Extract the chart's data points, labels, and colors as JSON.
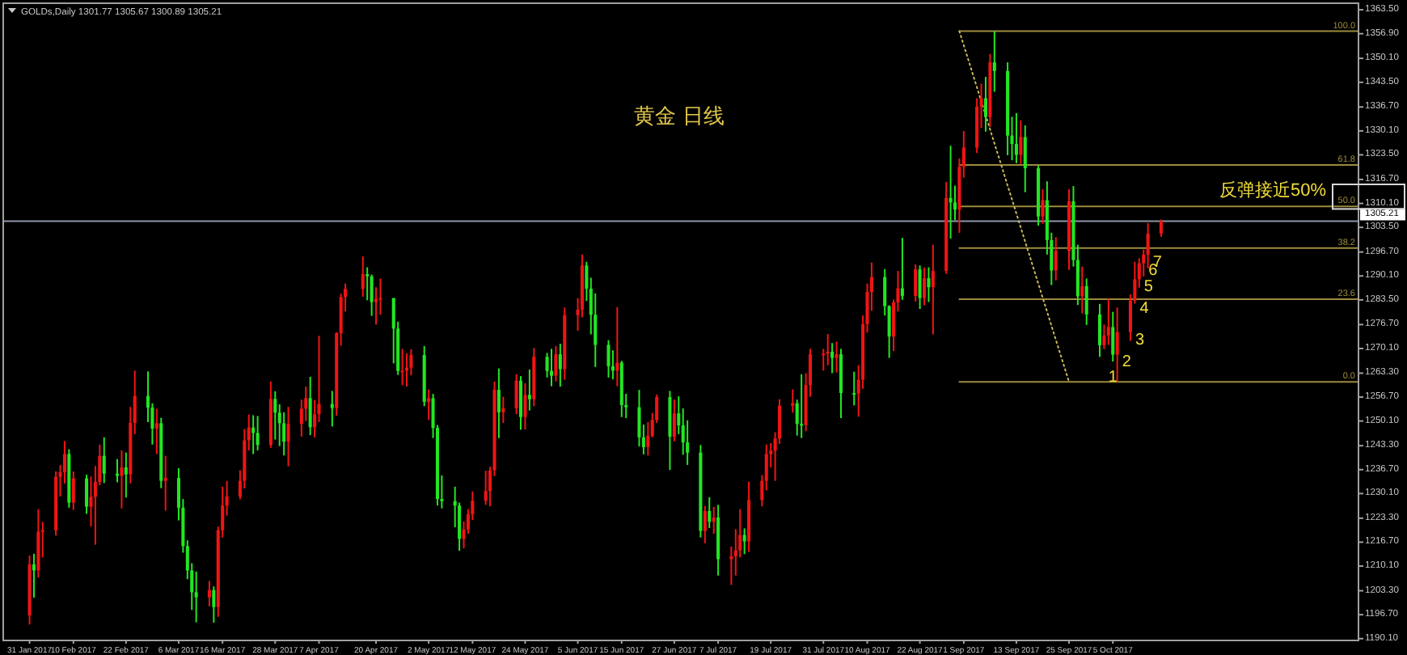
{
  "chart_data": {
    "type": "candlestick",
    "title": "黄金 日线",
    "xlim": [
      "2017-01-25",
      "2017-11-30"
    ],
    "ylim": [
      1189.6,
      1365.3
    ],
    "xticks": [
      {
        "value": "2017-01-31",
        "label": "31 Jan 2017"
      },
      {
        "value": "2017-02-10",
        "label": "10 Feb 2017"
      },
      {
        "value": "2017-02-22",
        "label": "22 Feb 2017"
      },
      {
        "value": "2017-03-06",
        "label": "6 Mar 2017"
      },
      {
        "value": "2017-03-16",
        "label": "16 Mar 2017"
      },
      {
        "value": "2017-03-28",
        "label": "28 Mar 2017"
      },
      {
        "value": "2017-04-07",
        "label": "7 Apr 2017"
      },
      {
        "value": "2017-04-20",
        "label": "20 Apr 2017"
      },
      {
        "value": "2017-05-02",
        "label": "2 May 2017"
      },
      {
        "value": "2017-05-12",
        "label": "12 May 2017"
      },
      {
        "value": "2017-05-24",
        "label": "24 May 2017"
      },
      {
        "value": "2017-06-05",
        "label": "5 Jun 2017"
      },
      {
        "value": "2017-06-15",
        "label": "15 Jun 2017"
      },
      {
        "value": "2017-06-27",
        "label": "27 Jun 2017"
      },
      {
        "value": "2017-07-07",
        "label": "7 Jul 2017"
      },
      {
        "value": "2017-07-19",
        "label": "19 Jul 2017"
      },
      {
        "value": "2017-07-31",
        "label": "31 Jul 2017"
      },
      {
        "value": "2017-08-10",
        "label": "10 Aug 2017"
      },
      {
        "value": "2017-08-22",
        "label": "22 Aug 2017"
      },
      {
        "value": "2017-09-01",
        "label": "1 Sep 2017"
      },
      {
        "value": "2017-09-13",
        "label": "13 Sep 2017"
      },
      {
        "value": "2017-09-25",
        "label": "25 Sep 2017"
      },
      {
        "value": "2017-10-05",
        "label": "5 Oct 2017"
      }
    ],
    "yticks": [
      {
        "value": 1363.5,
        "label": "1363.50"
      },
      {
        "value": 1356.9,
        "label": "1356.90"
      },
      {
        "value": 1350.1,
        "label": "1350.10"
      },
      {
        "value": 1343.5,
        "label": "1343.50"
      },
      {
        "value": 1336.7,
        "label": "1336.70"
      },
      {
        "value": 1330.1,
        "label": "1330.10"
      },
      {
        "value": 1323.5,
        "label": "1323.50"
      },
      {
        "value": 1316.7,
        "label": "1316.70"
      },
      {
        "value": 1310.1,
        "label": "1310.10"
      },
      {
        "value": 1303.5,
        "label": "1303.50"
      },
      {
        "value": 1296.7,
        "label": "1296.70"
      },
      {
        "value": 1290.1,
        "label": "1290.10"
      },
      {
        "value": 1283.5,
        "label": "1283.50"
      },
      {
        "value": 1276.7,
        "label": "1276.70"
      },
      {
        "value": 1270.1,
        "label": "1270.10"
      },
      {
        "value": 1263.3,
        "label": "1263.30"
      },
      {
        "value": 1256.7,
        "label": "1256.70"
      },
      {
        "value": 1250.1,
        "label": "1250.10"
      },
      {
        "value": 1243.3,
        "label": "1243.30"
      },
      {
        "value": 1236.7,
        "label": "1236.70"
      },
      {
        "value": 1230.1,
        "label": "1230.10"
      },
      {
        "value": 1223.3,
        "label": "1223.30"
      },
      {
        "value": 1216.7,
        "label": "1216.70"
      },
      {
        "value": 1210.1,
        "label": "1210.10"
      },
      {
        "value": 1203.3,
        "label": "1203.30"
      },
      {
        "value": 1196.7,
        "label": "1196.70"
      },
      {
        "value": 1190.1,
        "label": "1190.10"
      }
    ],
    "ref_lines": [
      {
        "axis": "y",
        "value": 1305.21,
        "label": "1305.21",
        "color": "#8c96a8"
      }
    ],
    "series": [
      {
        "type": "line",
        "name": "100.0",
        "color": "#9c8a3c",
        "x": [
          "2017-08-31",
          "2017-11-30"
        ],
        "values": [
          1357.6,
          1357.6
        ]
      },
      {
        "type": "line",
        "name": "61.8",
        "color": "#9c8a3c",
        "x": [
          "2017-08-31",
          "2017-11-30"
        ],
        "values": [
          1320.7,
          1320.7
        ]
      },
      {
        "type": "line",
        "name": "50.0",
        "color": "#9c8a3c",
        "x": [
          "2017-08-31",
          "2017-11-30"
        ],
        "values": [
          1309.3,
          1309.3
        ]
      },
      {
        "type": "line",
        "name": "38.2",
        "color": "#9c8a3c",
        "x": [
          "2017-08-31",
          "2017-11-30"
        ],
        "values": [
          1297.8,
          1297.8
        ]
      },
      {
        "type": "line",
        "name": "23.6",
        "color": "#9c8a3c",
        "x": [
          "2017-08-31",
          "2017-11-30"
        ],
        "values": [
          1283.7,
          1283.7
        ]
      },
      {
        "type": "line",
        "name": "0.0",
        "color": "#9c8a3c",
        "x": [
          "2017-08-31",
          "2017-11-30"
        ],
        "values": [
          1260.9,
          1260.9
        ]
      },
      {
        "type": "line",
        "color": "#c8b85a",
        "line_style": "dotted",
        "x": [
          "2017-08-31",
          "2017-09-25"
        ],
        "values": [
          1357.6,
          1260.9
        ]
      },
      {
        "type": "candlestick",
        "x": [
          "2017-01-31",
          "2017-02-01",
          "2017-02-02",
          "2017-02-03",
          "2017-02-06",
          "2017-02-07",
          "2017-02-08",
          "2017-02-09",
          "2017-02-10",
          "2017-02-13",
          "2017-02-14",
          "2017-02-15",
          "2017-02-16",
          "2017-02-17",
          "2017-02-20",
          "2017-02-21",
          "2017-02-22",
          "2017-02-23",
          "2017-02-24",
          "2017-02-27",
          "2017-02-28",
          "2017-03-01",
          "2017-03-02",
          "2017-03-03",
          "2017-03-06",
          "2017-03-07",
          "2017-03-08",
          "2017-03-09",
          "2017-03-10",
          "2017-03-13",
          "2017-03-14",
          "2017-03-15",
          "2017-03-16",
          "2017-03-17",
          "2017-03-20",
          "2017-03-21",
          "2017-03-22",
          "2017-03-23",
          "2017-03-24",
          "2017-03-27",
          "2017-03-28",
          "2017-03-29",
          "2017-03-30",
          "2017-03-31",
          "2017-04-03",
          "2017-04-04",
          "2017-04-05",
          "2017-04-06",
          "2017-04-07",
          "2017-04-10",
          "2017-04-11",
          "2017-04-12",
          "2017-04-13",
          "2017-04-17",
          "2017-04-18",
          "2017-04-19",
          "2017-04-20",
          "2017-04-21",
          "2017-04-24",
          "2017-04-25",
          "2017-04-26",
          "2017-04-27",
          "2017-04-28",
          "2017-05-01",
          "2017-05-02",
          "2017-05-03",
          "2017-05-04",
          "2017-05-05",
          "2017-05-08",
          "2017-05-09",
          "2017-05-10",
          "2017-05-11",
          "2017-05-12",
          "2017-05-15",
          "2017-05-16",
          "2017-05-17",
          "2017-05-18",
          "2017-05-19",
          "2017-05-22",
          "2017-05-23",
          "2017-05-24",
          "2017-05-25",
          "2017-05-26",
          "2017-05-29",
          "2017-05-30",
          "2017-05-31",
          "2017-06-01",
          "2017-06-02",
          "2017-06-05",
          "2017-06-06",
          "2017-06-07",
          "2017-06-08",
          "2017-06-09",
          "2017-06-12",
          "2017-06-13",
          "2017-06-14",
          "2017-06-15",
          "2017-06-16",
          "2017-06-19",
          "2017-06-20",
          "2017-06-21",
          "2017-06-22",
          "2017-06-23",
          "2017-06-26",
          "2017-06-27",
          "2017-06-28",
          "2017-06-29",
          "2017-06-30",
          "2017-07-03",
          "2017-07-04",
          "2017-07-05",
          "2017-07-06",
          "2017-07-07",
          "2017-07-10",
          "2017-07-11",
          "2017-07-12",
          "2017-07-13",
          "2017-07-14",
          "2017-07-17",
          "2017-07-18",
          "2017-07-19",
          "2017-07-20",
          "2017-07-21",
          "2017-07-24",
          "2017-07-25",
          "2017-07-26",
          "2017-07-27",
          "2017-07-28",
          "2017-07-31",
          "2017-08-01",
          "2017-08-02",
          "2017-08-03",
          "2017-08-04",
          "2017-08-07",
          "2017-08-08",
          "2017-08-09",
          "2017-08-10",
          "2017-08-11",
          "2017-08-14",
          "2017-08-15",
          "2017-08-16",
          "2017-08-17",
          "2017-08-18",
          "2017-08-21",
          "2017-08-22",
          "2017-08-23",
          "2017-08-24",
          "2017-08-25",
          "2017-08-28",
          "2017-08-29",
          "2017-08-30",
          "2017-08-31",
          "2017-09-01",
          "2017-09-04",
          "2017-09-05",
          "2017-09-06",
          "2017-09-07",
          "2017-09-08",
          "2017-09-11",
          "2017-09-12",
          "2017-09-13",
          "2017-09-14",
          "2017-09-15",
          "2017-09-18",
          "2017-09-19",
          "2017-09-20",
          "2017-09-21",
          "2017-09-22",
          "2017-09-25",
          "2017-09-26",
          "2017-09-27",
          "2017-09-28",
          "2017-09-29",
          "2017-10-02",
          "2017-10-03",
          "2017-10-04",
          "2017-10-05",
          "2017-10-06",
          "2017-10-09",
          "2017-10-10",
          "2017-10-11",
          "2017-10-12",
          "2017-10-13",
          "2017-10-16"
        ],
        "ohlc": [
          [
            1196.5,
            1213.0,
            1194.0,
            1210.6
          ],
          [
            1210.6,
            1213.5,
            1201.4,
            1208.9
          ],
          [
            1208.9,
            1225.8,
            1207.0,
            1219.6
          ],
          [
            1219.6,
            1222.3,
            1212.5,
            1220.0
          ],
          [
            1220.0,
            1236.2,
            1218.5,
            1234.7
          ],
          [
            1234.7,
            1238.0,
            1229.3,
            1236.0
          ],
          [
            1236.0,
            1244.6,
            1232.9,
            1241.0
          ],
          [
            1241.0,
            1242.3,
            1226.2,
            1227.6
          ],
          [
            1227.6,
            1236.2,
            1225.6,
            1234.3
          ],
          [
            1234.3,
            1235.3,
            1224.5,
            1226.5
          ],
          [
            1226.5,
            1234.8,
            1221.0,
            1229.2
          ],
          [
            1229.2,
            1237.7,
            1216.0,
            1233.3
          ],
          [
            1233.3,
            1243.6,
            1232.4,
            1240.5
          ],
          [
            1240.5,
            1245.6,
            1233.0,
            1235.6
          ],
          [
            1235.6,
            1239.6,
            1233.2,
            1235.0
          ],
          [
            1235.0,
            1242.0,
            1226.0,
            1237.3
          ],
          [
            1237.3,
            1241.4,
            1229.0,
            1235.4
          ],
          [
            1235.4,
            1254.0,
            1232.9,
            1249.6
          ],
          [
            1249.6,
            1264.0,
            1246.5,
            1257.0
          ],
          [
            1257.0,
            1263.8,
            1249.8,
            1253.8
          ],
          [
            1253.8,
            1255.0,
            1243.6,
            1248.0
          ],
          [
            1248.0,
            1253.5,
            1241.0,
            1249.5
          ],
          [
            1249.5,
            1251.0,
            1231.6,
            1233.6
          ],
          [
            1233.6,
            1240.5,
            1225.4,
            1234.4
          ],
          [
            1234.4,
            1237.1,
            1222.7,
            1226.2
          ],
          [
            1226.2,
            1228.6,
            1213.8,
            1215.6
          ],
          [
            1215.6,
            1217.2,
            1206.5,
            1208.9
          ],
          [
            1208.9,
            1210.9,
            1198.0,
            1202.9
          ],
          [
            1202.9,
            1208.6,
            1194.6,
            1201.5
          ],
          [
            1201.5,
            1206.0,
            1199.0,
            1203.5
          ],
          [
            1203.5,
            1204.5,
            1194.5,
            1198.8
          ],
          [
            1198.8,
            1221.0,
            1196.1,
            1220.0
          ],
          [
            1220.0,
            1232.0,
            1218.0,
            1226.8
          ],
          [
            1226.8,
            1233.6,
            1224.0,
            1229.3
          ],
          [
            1229.3,
            1236.5,
            1228.5,
            1233.6
          ],
          [
            1233.6,
            1247.9,
            1231.5,
            1244.8
          ],
          [
            1244.8,
            1251.9,
            1242.0,
            1248.3
          ],
          [
            1248.3,
            1251.7,
            1241.0,
            1246.8
          ],
          [
            1246.8,
            1251.5,
            1242.0,
            1243.5
          ],
          [
            1243.5,
            1261.0,
            1242.7,
            1256.2
          ],
          [
            1256.2,
            1258.3,
            1245.0,
            1252.4
          ],
          [
            1252.4,
            1254.7,
            1243.2,
            1249.5
          ],
          [
            1249.5,
            1252.5,
            1240.6,
            1244.4
          ],
          [
            1244.4,
            1254.0,
            1237.6,
            1249.3
          ],
          [
            1249.3,
            1256.0,
            1245.8,
            1253.5
          ],
          [
            1253.5,
            1259.6,
            1250.1,
            1256.4
          ],
          [
            1256.4,
            1262.3,
            1246.2,
            1248.4
          ],
          [
            1248.4,
            1255.9,
            1245.6,
            1252.0
          ],
          [
            1252.0,
            1273.6,
            1249.8,
            1254.8
          ],
          [
            1254.8,
            1258.4,
            1248.6,
            1253.7
          ],
          [
            1253.7,
            1274.6,
            1251.6,
            1274.3
          ],
          [
            1274.3,
            1285.2,
            1270.9,
            1284.3
          ],
          [
            1284.3,
            1288.0,
            1280.3,
            1286.5
          ],
          [
            1286.5,
            1295.5,
            1284.4,
            1290.6
          ],
          [
            1290.6,
            1292.5,
            1283.4,
            1290.0
          ],
          [
            1290.0,
            1290.5,
            1279.1,
            1282.9
          ],
          [
            1282.9,
            1287.0,
            1276.7,
            1283.8
          ],
          [
            1283.8,
            1289.4,
            1279.4,
            1284.0
          ],
          [
            1284.0,
            1284.0,
            1266.0,
            1275.6
          ],
          [
            1275.6,
            1277.5,
            1262.8,
            1263.9
          ],
          [
            1263.9,
            1270.0,
            1260.0,
            1264.0
          ],
          [
            1264.0,
            1268.8,
            1259.6,
            1264.8
          ],
          [
            1264.8,
            1269.9,
            1262.7,
            1268.3
          ],
          [
            1268.3,
            1270.8,
            1254.2,
            1255.4
          ],
          [
            1255.4,
            1258.8,
            1250.4,
            1256.4
          ],
          [
            1256.4,
            1257.6,
            1245.4,
            1248.2
          ],
          [
            1248.2,
            1249.0,
            1226.8,
            1228.6
          ],
          [
            1228.6,
            1235.1,
            1226.0,
            1228.0
          ],
          [
            1228.0,
            1232.0,
            1220.8,
            1226.8
          ],
          [
            1226.8,
            1227.6,
            1214.3,
            1217.6
          ],
          [
            1217.6,
            1222.4,
            1215.0,
            1220.2
          ],
          [
            1220.2,
            1225.8,
            1219.0,
            1224.4
          ],
          [
            1224.4,
            1230.7,
            1222.8,
            1228.1
          ],
          [
            1228.1,
            1236.4,
            1227.0,
            1230.8
          ],
          [
            1230.8,
            1237.5,
            1226.6,
            1236.5
          ],
          [
            1236.5,
            1261.0,
            1234.9,
            1258.7
          ],
          [
            1258.7,
            1264.6,
            1245.4,
            1252.5
          ],
          [
            1252.5,
            1256.8,
            1249.6,
            1253.6
          ],
          [
            1253.6,
            1263.0,
            1252.0,
            1261.2
          ],
          [
            1261.2,
            1262.5,
            1247.7,
            1251.2
          ],
          [
            1251.2,
            1260.5,
            1247.8,
            1257.3
          ],
          [
            1257.3,
            1264.3,
            1253.0,
            1256.1
          ],
          [
            1256.1,
            1270.2,
            1254.2,
            1267.8
          ],
          [
            1267.8,
            1268.9,
            1262.1,
            1263.9
          ],
          [
            1263.9,
            1270.0,
            1259.7,
            1262.6
          ],
          [
            1262.6,
            1270.8,
            1261.0,
            1268.5
          ],
          [
            1268.5,
            1271.4,
            1259.6,
            1264.4
          ],
          [
            1264.4,
            1281.4,
            1261.5,
            1279.3
          ],
          [
            1279.3,
            1284.0,
            1275.0,
            1280.8
          ],
          [
            1280.8,
            1296.0,
            1278.7,
            1293.0
          ],
          [
            1293.0,
            1294.0,
            1283.2,
            1286.6
          ],
          [
            1286.6,
            1289.6,
            1274.0,
            1279.4
          ],
          [
            1279.4,
            1285.3,
            1265.0,
            1271.1
          ],
          [
            1271.1,
            1272.4,
            1262.1,
            1265.2
          ],
          [
            1265.2,
            1269.6,
            1261.6,
            1264.0
          ],
          [
            1264.0,
            1281.5,
            1259.7,
            1266.2
          ],
          [
            1266.2,
            1266.7,
            1251.2,
            1254.5
          ],
          [
            1254.5,
            1257.6,
            1250.9,
            1253.9
          ],
          [
            1253.9,
            1258.7,
            1243.1,
            1245.6
          ],
          [
            1245.6,
            1249.1,
            1240.9,
            1242.9
          ],
          [
            1242.9,
            1249.8,
            1240.6,
            1246.0
          ],
          [
            1246.0,
            1252.3,
            1245.6,
            1250.4
          ],
          [
            1250.4,
            1257.4,
            1249.6,
            1256.7
          ],
          [
            1256.7,
            1258.4,
            1236.6,
            1245.8
          ],
          [
            1245.8,
            1256.0,
            1244.5,
            1252.2
          ],
          [
            1252.2,
            1256.9,
            1246.5,
            1248.9
          ],
          [
            1248.9,
            1253.6,
            1240.8,
            1244.2
          ],
          [
            1244.2,
            1250.3,
            1238.0,
            1241.4
          ],
          [
            1241.4,
            1243.5,
            1218.0,
            1219.8
          ],
          [
            1219.8,
            1226.7,
            1216.4,
            1225.3
          ],
          [
            1225.3,
            1229.1,
            1220.6,
            1222.3
          ],
          [
            1222.3,
            1226.4,
            1219.0,
            1223.5
          ],
          [
            1223.5,
            1227.0,
            1207.5,
            1212.0
          ],
          [
            1212.0,
            1215.5,
            1204.9,
            1212.8
          ],
          [
            1212.8,
            1220.3,
            1207.5,
            1214.4
          ],
          [
            1214.4,
            1225.8,
            1212.5,
            1218.7
          ],
          [
            1218.7,
            1220.5,
            1213.4,
            1216.9
          ],
          [
            1216.9,
            1233.4,
            1214.0,
            1228.3
          ],
          [
            1228.3,
            1235.2,
            1226.6,
            1233.6
          ],
          [
            1233.6,
            1243.6,
            1231.0,
            1241.0
          ],
          [
            1241.0,
            1244.0,
            1237.3,
            1241.9
          ],
          [
            1241.9,
            1247.0,
            1233.6,
            1245.3
          ],
          [
            1245.3,
            1256.1,
            1243.8,
            1254.3
          ],
          [
            1254.3,
            1258.8,
            1252.4,
            1255.0
          ],
          [
            1255.0,
            1256.0,
            1246.1,
            1249.3
          ],
          [
            1249.3,
            1263.0,
            1245.4,
            1249.0
          ],
          [
            1249.0,
            1263.3,
            1247.3,
            1260.0
          ],
          [
            1260.0,
            1270.0,
            1256.8,
            1268.5
          ],
          [
            1268.5,
            1270.0,
            1264.0,
            1268.7
          ],
          [
            1268.7,
            1274.1,
            1265.5,
            1269.2
          ],
          [
            1269.2,
            1271.6,
            1263.3,
            1267.5
          ],
          [
            1267.5,
            1272.0,
            1263.5,
            1268.5
          ],
          [
            1268.5,
            1270.0,
            1250.9,
            1257.8
          ],
          [
            1257.8,
            1263.7,
            1254.4,
            1257.7
          ],
          [
            1257.7,
            1265.5,
            1251.3,
            1261.5
          ],
          [
            1261.5,
            1279.2,
            1259.0,
            1276.8
          ],
          [
            1276.8,
            1288.0,
            1274.5,
            1285.7
          ],
          [
            1285.7,
            1293.8,
            1280.5,
            1289.8
          ],
          [
            1289.8,
            1292.0,
            1279.2,
            1281.8
          ],
          [
            1281.8,
            1282.0,
            1267.5,
            1273.4
          ],
          [
            1273.4,
            1283.6,
            1269.4,
            1282.8
          ],
          [
            1282.8,
            1291.5,
            1280.3,
            1286.7
          ],
          [
            1286.7,
            1300.6,
            1283.5,
            1284.6
          ],
          [
            1284.6,
            1293.3,
            1283.0,
            1291.9
          ],
          [
            1291.9,
            1293.0,
            1281.0,
            1284.0
          ],
          [
            1284.0,
            1292.4,
            1282.0,
            1289.5
          ],
          [
            1289.5,
            1292.5,
            1282.9,
            1287.0
          ],
          [
            1287.0,
            1298.7,
            1274.0,
            1291.5
          ],
          [
            1291.5,
            1316.0,
            1290.7,
            1311.6
          ],
          [
            1311.6,
            1326.0,
            1300.4,
            1310.4
          ],
          [
            1310.4,
            1315.0,
            1305.5,
            1308.4
          ],
          [
            1308.4,
            1322.5,
            1302.0,
            1320.2
          ],
          [
            1320.2,
            1330.1,
            1317.2,
            1325.5
          ],
          [
            1325.5,
            1339.1,
            1324.0,
            1336.8
          ],
          [
            1336.8,
            1343.1,
            1330.9,
            1339.1
          ],
          [
            1339.1,
            1345.0,
            1329.9,
            1333.9
          ],
          [
            1333.9,
            1351.3,
            1331.2,
            1349.0
          ],
          [
            1349.0,
            1357.6,
            1340.9,
            1346.6
          ],
          [
            1346.6,
            1349.0,
            1323.4,
            1328.8
          ],
          [
            1328.8,
            1334.0,
            1322.0,
            1326.5
          ],
          [
            1326.5,
            1335.0,
            1321.2,
            1323.5
          ],
          [
            1323.5,
            1333.0,
            1321.0,
            1328.4
          ],
          [
            1328.4,
            1331.6,
            1313.2,
            1319.8
          ],
          [
            1319.8,
            1320.5,
            1304.0,
            1306.5
          ],
          [
            1306.5,
            1314.0,
            1304.5,
            1311.0
          ],
          [
            1311.0,
            1316.2,
            1296.0,
            1300.0
          ],
          [
            1300.0,
            1302.0,
            1287.6,
            1291.6
          ],
          [
            1291.6,
            1300.8,
            1288.9,
            1297.0
          ],
          [
            1297.0,
            1314.0,
            1291.8,
            1310.7
          ],
          [
            1310.7,
            1314.9,
            1292.7,
            1294.5
          ],
          [
            1294.5,
            1298.7,
            1282.1,
            1284.5
          ],
          [
            1284.5,
            1292.7,
            1279.8,
            1287.3
          ],
          [
            1287.3,
            1289.4,
            1276.6,
            1279.5
          ],
          [
            1279.5,
            1282.4,
            1267.8,
            1271.0
          ],
          [
            1271.0,
            1276.7,
            1269.9,
            1273.7
          ],
          [
            1273.7,
            1283.8,
            1271.1,
            1276.0
          ],
          [
            1276.0,
            1280.2,
            1266.5,
            1268.4
          ],
          [
            1268.4,
            1281.4,
            1260.9,
            1274.6
          ],
          [
            1274.6,
            1285.0,
            1272.2,
            1283.3
          ],
          [
            1283.3,
            1294.0,
            1282.5,
            1289.2
          ],
          [
            1289.2,
            1295.0,
            1286.9,
            1293.6
          ],
          [
            1293.6,
            1297.4,
            1290.0,
            1296.0
          ],
          [
            1296.0,
            1304.7,
            1292.2,
            1301.8
          ],
          [
            1301.77,
            1305.67,
            1300.89,
            1305.21
          ]
        ],
        "colors": [
          "#f01414",
          "#22e622",
          "#f01414",
          "#f01414",
          "#f01414",
          "#f01414",
          "#f01414",
          "#22e622",
          "#f01414",
          "#22e622",
          "#f01414",
          "#f01414",
          "#f01414",
          "#22e622",
          "#22e622",
          "#f01414",
          "#22e622",
          "#f01414",
          "#f01414",
          "#22e622",
          "#22e622",
          "#f01414",
          "#22e622",
          "#f01414",
          "#22e622",
          "#22e622",
          "#22e622",
          "#22e622",
          "#22e622",
          "#f01414",
          "#22e622",
          "#f01414",
          "#f01414",
          "#f01414",
          "#f01414",
          "#f01414",
          "#f01414",
          "#22e622",
          "#22e622",
          "#f01414",
          "#22e622",
          "#22e622",
          "#22e622",
          "#f01414",
          "#f01414",
          "#f01414",
          "#22e622",
          "#f01414",
          "#f01414",
          "#22e622",
          "#f01414",
          "#f01414",
          "#f01414",
          "#f01414",
          "#22e622",
          "#22e622",
          "#f01414",
          "#f01414",
          "#22e622",
          "#22e622",
          "#f01414",
          "#f01414",
          "#f01414",
          "#22e622",
          "#f01414",
          "#22e622",
          "#22e622",
          "#22e622",
          "#22e622",
          "#22e622",
          "#f01414",
          "#f01414",
          "#f01414",
          "#f01414",
          "#f01414",
          "#f01414",
          "#22e622",
          "#f01414",
          "#f01414",
          "#22e622",
          "#f01414",
          "#22e622",
          "#f01414",
          "#22e622",
          "#22e622",
          "#f01414",
          "#22e622",
          "#f01414",
          "#f01414",
          "#f01414",
          "#22e622",
          "#22e622",
          "#22e622",
          "#22e622",
          "#22e622",
          "#f01414",
          "#22e622",
          "#22e622",
          "#22e622",
          "#22e622",
          "#f01414",
          "#f01414",
          "#f01414",
          "#22e622",
          "#f01414",
          "#22e622",
          "#22e622",
          "#22e622",
          "#22e622",
          "#f01414",
          "#22e622",
          "#f01414",
          "#22e622",
          "#f01414",
          "#f01414",
          "#f01414",
          "#22e622",
          "#f01414",
          "#f01414",
          "#f01414",
          "#f01414",
          "#f01414",
          "#f01414",
          "#f01414",
          "#22e622",
          "#22e622",
          "#f01414",
          "#f01414",
          "#f01414",
          "#f01414",
          "#22e622",
          "#f01414",
          "#22e622",
          "#22e622",
          "#f01414",
          "#f01414",
          "#f01414",
          "#f01414",
          "#22e622",
          "#22e622",
          "#f01414",
          "#f01414",
          "#22e622",
          "#f01414",
          "#22e622",
          "#f01414",
          "#22e622",
          "#f01414",
          "#f01414",
          "#22e622",
          "#22e622",
          "#f01414",
          "#f01414",
          "#f01414",
          "#f01414",
          "#22e622",
          "#f01414",
          "#22e622",
          "#22e622",
          "#22e622",
          "#22e622",
          "#f01414",
          "#22e622",
          "#22e622",
          "#f01414",
          "#22e622",
          "#22e622",
          "#f01414",
          "#f01414",
          "#22e622",
          "#22e622",
          "#f01414",
          "#22e622",
          "#22e622",
          "#f01414",
          "#f01414",
          "#22e622",
          "#f01414",
          "#f01414",
          "#f01414",
          "#f01414",
          "#f01414",
          "#f01414",
          "#f01414"
        ]
      }
    ],
    "annotations": [
      "GOLDs,Daily 1301.77 1305.67 1300.89 1305.21",
      "1",
      "2",
      "3",
      "4",
      "5",
      "6",
      "7",
      "反弹接近50%"
    ]
  }
}
